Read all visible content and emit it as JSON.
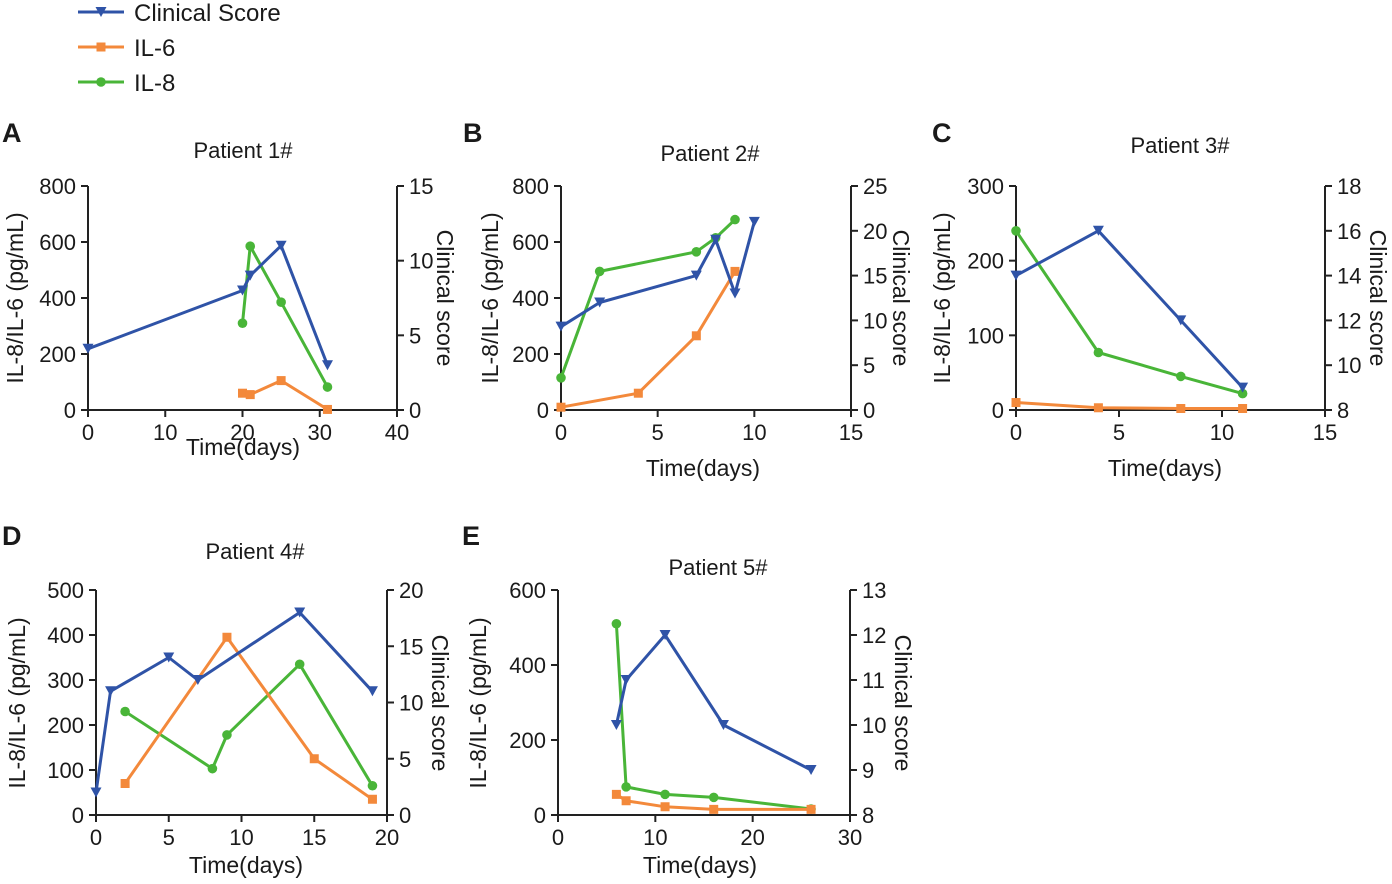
{
  "legend": [
    {
      "name": "Clinical Score",
      "color": "#2f53a7",
      "marker": "triangle-down"
    },
    {
      "name": "IL-6",
      "color": "#f3893b",
      "marker": "square"
    },
    {
      "name": "IL-8",
      "color": "#49b538",
      "marker": "circle"
    }
  ],
  "chart_data": [
    {
      "panel": "A",
      "type": "line",
      "title": "Patient 1#",
      "xlabel": "Time(days)",
      "ylabel": "IL-8/IL-6 (pg/mL)",
      "y2label": "Clinical score",
      "xlim": [
        0,
        40
      ],
      "xticks": [
        0,
        10,
        20,
        30,
        40
      ],
      "ylim": [
        0,
        800
      ],
      "yticks": [
        0,
        200,
        400,
        600,
        800
      ],
      "y2lim": [
        0,
        15
      ],
      "y2ticks": [
        0,
        5,
        10,
        15
      ],
      "series": [
        {
          "name": "Clinical Score",
          "axis": "right",
          "x": [
            0,
            20,
            21,
            25,
            31
          ],
          "y": [
            4.1,
            8.0,
            9.0,
            11.0,
            3.0
          ]
        },
        {
          "name": "IL-6",
          "axis": "left",
          "x": [
            20,
            21,
            25,
            31
          ],
          "y": [
            60,
            55,
            105,
            2
          ]
        },
        {
          "name": "IL-8",
          "axis": "left",
          "x": [
            20,
            21,
            25,
            31
          ],
          "y": [
            310,
            585,
            385,
            82
          ]
        }
      ]
    },
    {
      "panel": "B",
      "type": "line",
      "title": "Patient 2#",
      "xlabel": "Time(days)",
      "ylabel": "IL-8/IL-6 (pg/mL)",
      "y2label": "Clinical score",
      "xlim": [
        0,
        15
      ],
      "xticks": [
        0,
        5,
        10,
        15
      ],
      "ylim": [
        0,
        800
      ],
      "yticks": [
        0,
        200,
        400,
        600,
        800
      ],
      "y2lim": [
        0,
        25
      ],
      "y2ticks": [
        0,
        5,
        10,
        15,
        20,
        25
      ],
      "series": [
        {
          "name": "Clinical Score",
          "axis": "right",
          "x": [
            0,
            2,
            7,
            8,
            9,
            10
          ],
          "y": [
            9.3,
            12.0,
            15.0,
            19.0,
            13.0,
            21.0
          ]
        },
        {
          "name": "IL-6",
          "axis": "left",
          "x": [
            0,
            4,
            7,
            9
          ],
          "y": [
            10,
            60,
            265,
            495
          ]
        },
        {
          "name": "IL-8",
          "axis": "left",
          "x": [
            0,
            2,
            7,
            8,
            9
          ],
          "y": [
            115,
            495,
            565,
            615,
            680
          ]
        }
      ]
    },
    {
      "panel": "C",
      "type": "line",
      "title": "Patient 3#",
      "xlabel": "Time(days)",
      "ylabel": "IL-8/IL-6 (pg/mL)",
      "y2label": "Clinical score",
      "xlim": [
        0,
        15
      ],
      "xticks": [
        0,
        5,
        10,
        15
      ],
      "ylim": [
        0,
        300
      ],
      "yticks": [
        0,
        100,
        200,
        300
      ],
      "y2lim": [
        8,
        18
      ],
      "y2ticks": [
        8,
        10,
        12,
        14,
        16,
        18
      ],
      "series": [
        {
          "name": "Clinical Score",
          "axis": "right",
          "x": [
            0,
            4,
            8,
            11
          ],
          "y": [
            14.0,
            16.0,
            12.0,
            9.0
          ]
        },
        {
          "name": "IL-6",
          "axis": "left",
          "x": [
            0,
            4,
            8,
            11
          ],
          "y": [
            10,
            3,
            2,
            2
          ]
        },
        {
          "name": "IL-8",
          "axis": "left",
          "x": [
            0,
            4,
            8,
            11
          ],
          "y": [
            240,
            77,
            45,
            22
          ]
        }
      ]
    },
    {
      "panel": "D",
      "type": "line",
      "title": "Patient 4#",
      "xlabel": "Time(days)",
      "ylabel": "IL-8/IL-6 (pg/mL)",
      "y2label": "Clinical score",
      "xlim": [
        0,
        20
      ],
      "xticks": [
        0,
        5,
        10,
        15,
        20
      ],
      "ylim": [
        0,
        500
      ],
      "yticks": [
        0,
        100,
        200,
        300,
        400,
        500
      ],
      "y2lim": [
        0,
        20
      ],
      "y2ticks": [
        0,
        5,
        10,
        15,
        20
      ],
      "series": [
        {
          "name": "Clinical Score",
          "axis": "right",
          "x": [
            0,
            1,
            5,
            7,
            14,
            19
          ],
          "y": [
            2.0,
            11.0,
            14.0,
            12.0,
            18.0,
            11.0
          ]
        },
        {
          "name": "IL-6",
          "axis": "left",
          "x": [
            2,
            9,
            15,
            19
          ],
          "y": [
            70,
            395,
            125,
            35
          ]
        },
        {
          "name": "IL-8",
          "axis": "left",
          "x": [
            2,
            8,
            9,
            14,
            19
          ],
          "y": [
            230,
            103,
            178,
            335,
            65
          ]
        }
      ]
    },
    {
      "panel": "E",
      "type": "line",
      "title": "Patient 5#",
      "xlabel": "Time(days)",
      "ylabel": "IL-8/IL-6 (pg/mL)",
      "y2label": "Clinical score",
      "xlim": [
        0,
        30
      ],
      "xticks": [
        0,
        10,
        20,
        30
      ],
      "ylim": [
        0,
        600
      ],
      "yticks": [
        0,
        200,
        400,
        600
      ],
      "y2lim": [
        8,
        13
      ],
      "y2ticks": [
        8,
        9,
        10,
        11,
        12,
        13
      ],
      "series": [
        {
          "name": "Clinical Score",
          "axis": "right",
          "x": [
            6,
            7,
            11,
            17,
            26
          ],
          "y": [
            10.0,
            11.0,
            12.0,
            10.0,
            9.0
          ]
        },
        {
          "name": "IL-6",
          "axis": "left",
          "x": [
            6,
            7,
            11,
            16,
            26
          ],
          "y": [
            55,
            38,
            22,
            15,
            15
          ]
        },
        {
          "name": "IL-8",
          "axis": "left",
          "x": [
            6,
            7,
            11,
            16,
            26
          ],
          "y": [
            510,
            75,
            55,
            47,
            16
          ]
        }
      ]
    }
  ]
}
